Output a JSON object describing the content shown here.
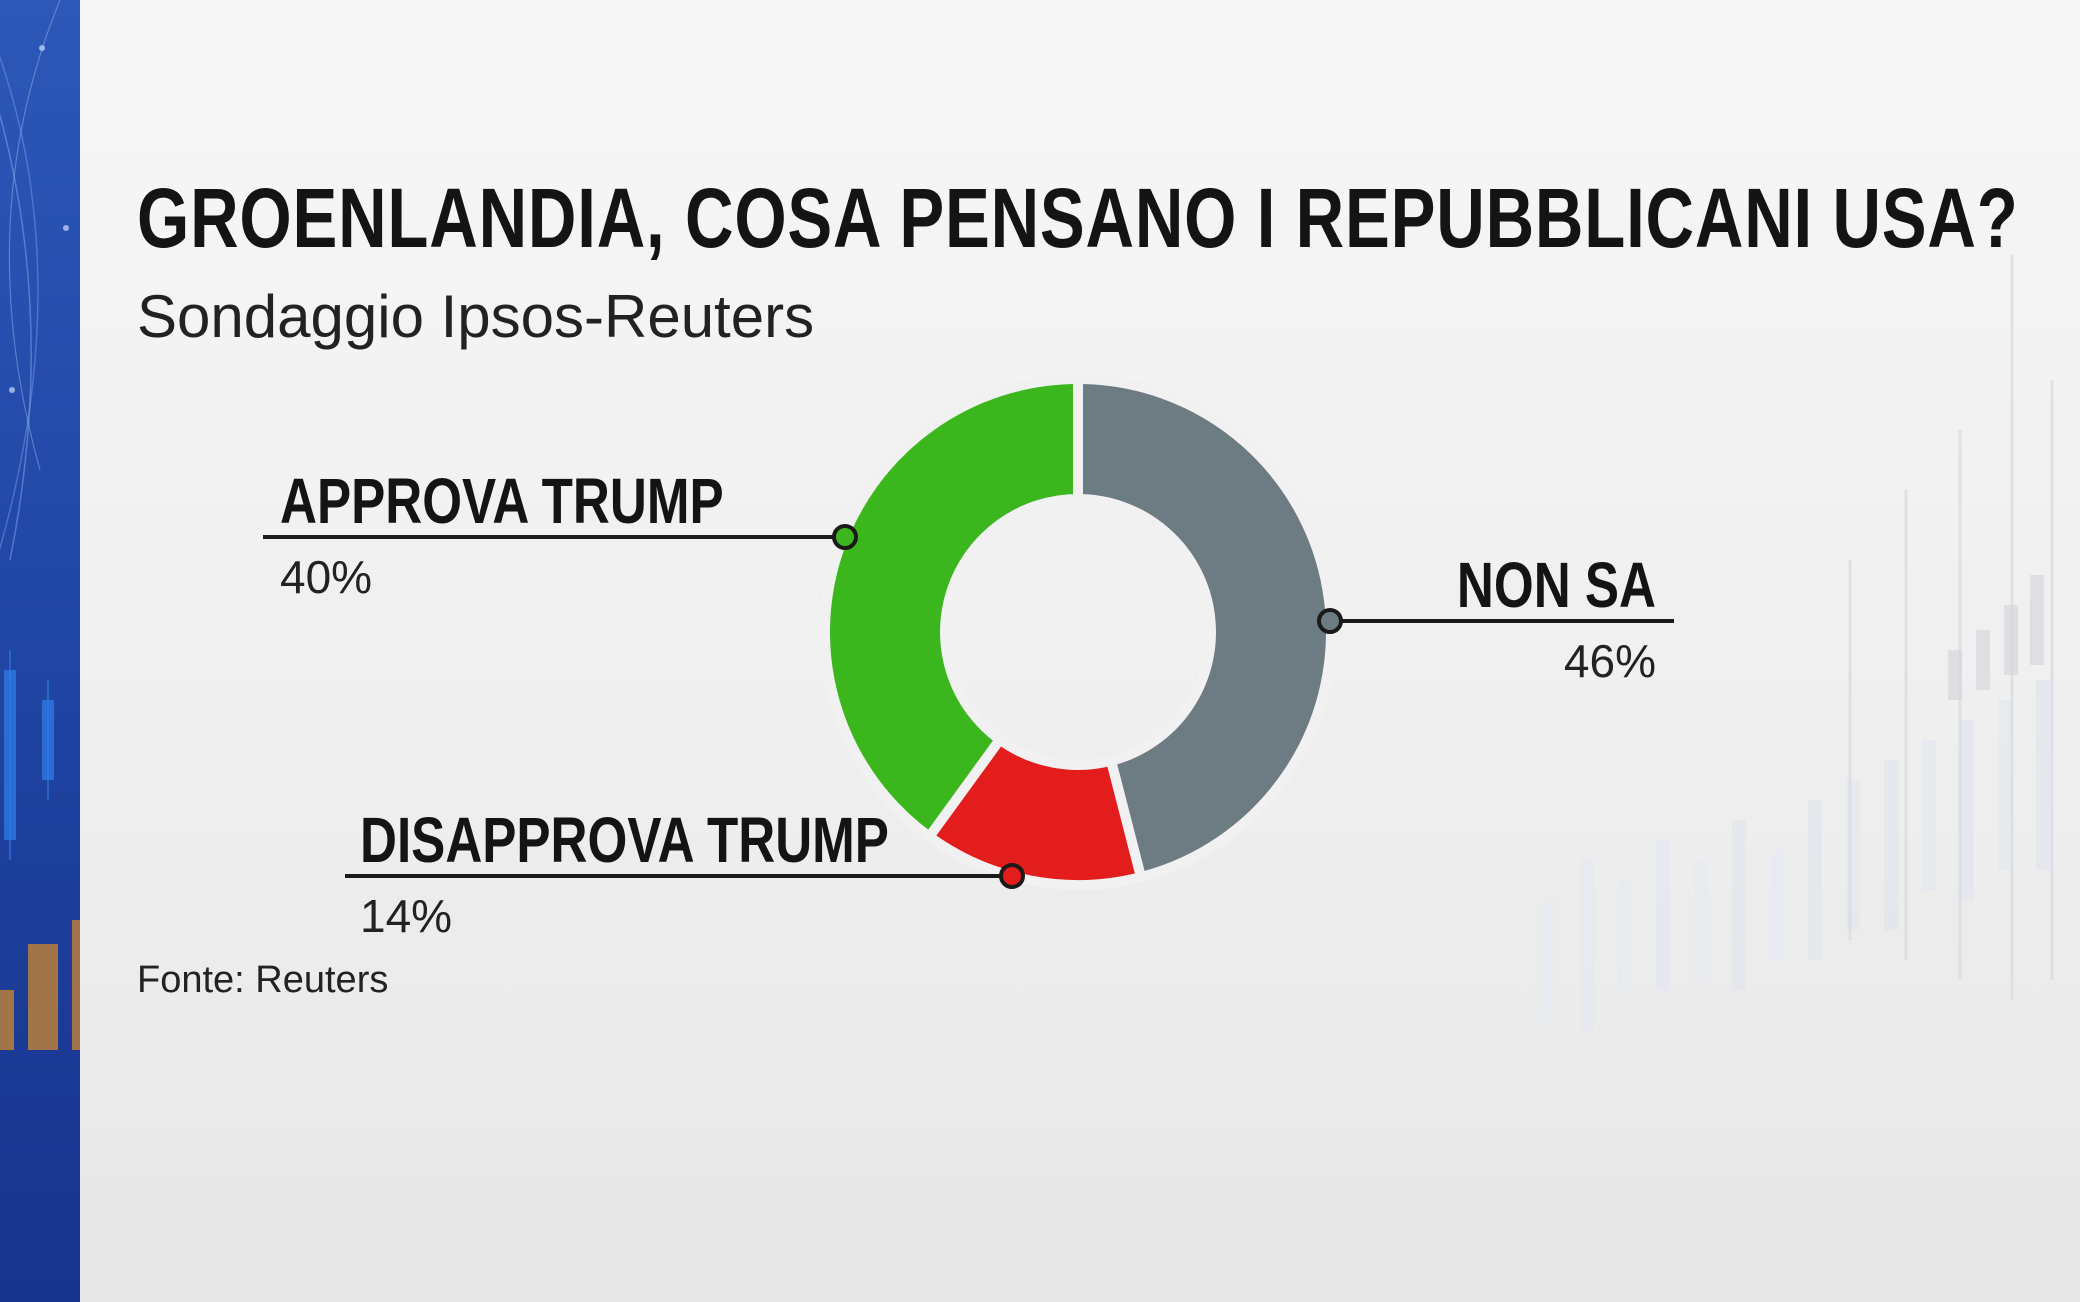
{
  "header": {
    "title": "GROENLANDIA, COSA PENSANO I REPUBBLICANI USA?",
    "subtitle": "Sondaggio Ipsos-Reuters"
  },
  "footer": {
    "source": "Fonte: Reuters"
  },
  "chart_data": {
    "type": "pie",
    "variant": "donut",
    "start_angle_deg": 0,
    "direction": "clockwise",
    "categories": [
      "NON SA",
      "DISAPPROVA TRUMP",
      "APPROVA TRUMP"
    ],
    "values": [
      46,
      14,
      40
    ],
    "value_labels": [
      "46%",
      "14%",
      "40%"
    ],
    "colors": [
      "#6d7b82",
      "#e31c1c",
      "#3bb61d"
    ],
    "legend": "none"
  },
  "colors": {
    "band": "#2147a6",
    "text": "#141414",
    "leader": "#1a1a1a",
    "gap": "#f1f1f1"
  }
}
